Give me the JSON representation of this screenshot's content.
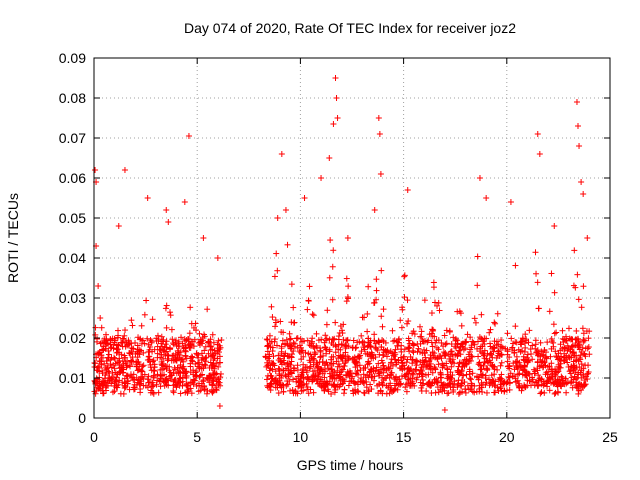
{
  "chart_data": {
    "type": "scatter",
    "title": "Day 074 of 2020, Rate Of TEC Index for receiver joz2",
    "xlabel": "GPS time / hours",
    "ylabel": "ROTI / TECUs",
    "xlim": [
      0,
      25
    ],
    "ylim": [
      0,
      0.09
    ],
    "x_ticks": [
      "0",
      "5",
      "10",
      "15",
      "20",
      "25"
    ],
    "y_ticks": [
      "0",
      "0.01",
      "0.02",
      "0.03",
      "0.04",
      "0.05",
      "0.06",
      "0.07",
      "0.08",
      "0.09"
    ],
    "grid": true,
    "marker": "+",
    "marker_color": "#ff0000",
    "data_gap_hours": [
      6.2,
      8.3
    ],
    "series": [
      {
        "name": "ROTI",
        "points": [
          [
            0.05,
            0.062
          ],
          [
            0.1,
            0.059
          ],
          [
            0.1,
            0.043
          ],
          [
            0.2,
            0.033
          ],
          [
            0.3,
            0.025
          ],
          [
            1.2,
            0.048
          ],
          [
            1.5,
            0.062
          ],
          [
            2.6,
            0.055
          ],
          [
            3.5,
            0.052
          ],
          [
            3.6,
            0.049
          ],
          [
            4.4,
            0.054
          ],
          [
            4.6,
            0.0705
          ],
          [
            5.3,
            0.045
          ],
          [
            6.0,
            0.04
          ],
          [
            6.1,
            0.003
          ],
          [
            8.9,
            0.05
          ],
          [
            9.1,
            0.066
          ],
          [
            9.3,
            0.052
          ],
          [
            10.2,
            0.055
          ],
          [
            11.0,
            0.06
          ],
          [
            11.4,
            0.065
          ],
          [
            11.6,
            0.0735
          ],
          [
            11.7,
            0.085
          ],
          [
            11.75,
            0.08
          ],
          [
            11.8,
            0.075
          ],
          [
            12.3,
            0.045
          ],
          [
            13.6,
            0.052
          ],
          [
            13.8,
            0.075
          ],
          [
            13.85,
            0.071
          ],
          [
            13.9,
            0.061
          ],
          [
            15.2,
            0.057
          ],
          [
            17.0,
            0.002
          ],
          [
            18.7,
            0.06
          ],
          [
            19.0,
            0.055
          ],
          [
            20.2,
            0.054
          ],
          [
            21.5,
            0.071
          ],
          [
            21.6,
            0.066
          ],
          [
            22.3,
            0.048
          ],
          [
            23.4,
            0.079
          ],
          [
            23.45,
            0.073
          ],
          [
            23.5,
            0.068
          ],
          [
            23.6,
            0.059
          ],
          [
            23.7,
            0.056
          ],
          [
            23.9,
            0.045
          ]
        ]
      }
    ]
  }
}
